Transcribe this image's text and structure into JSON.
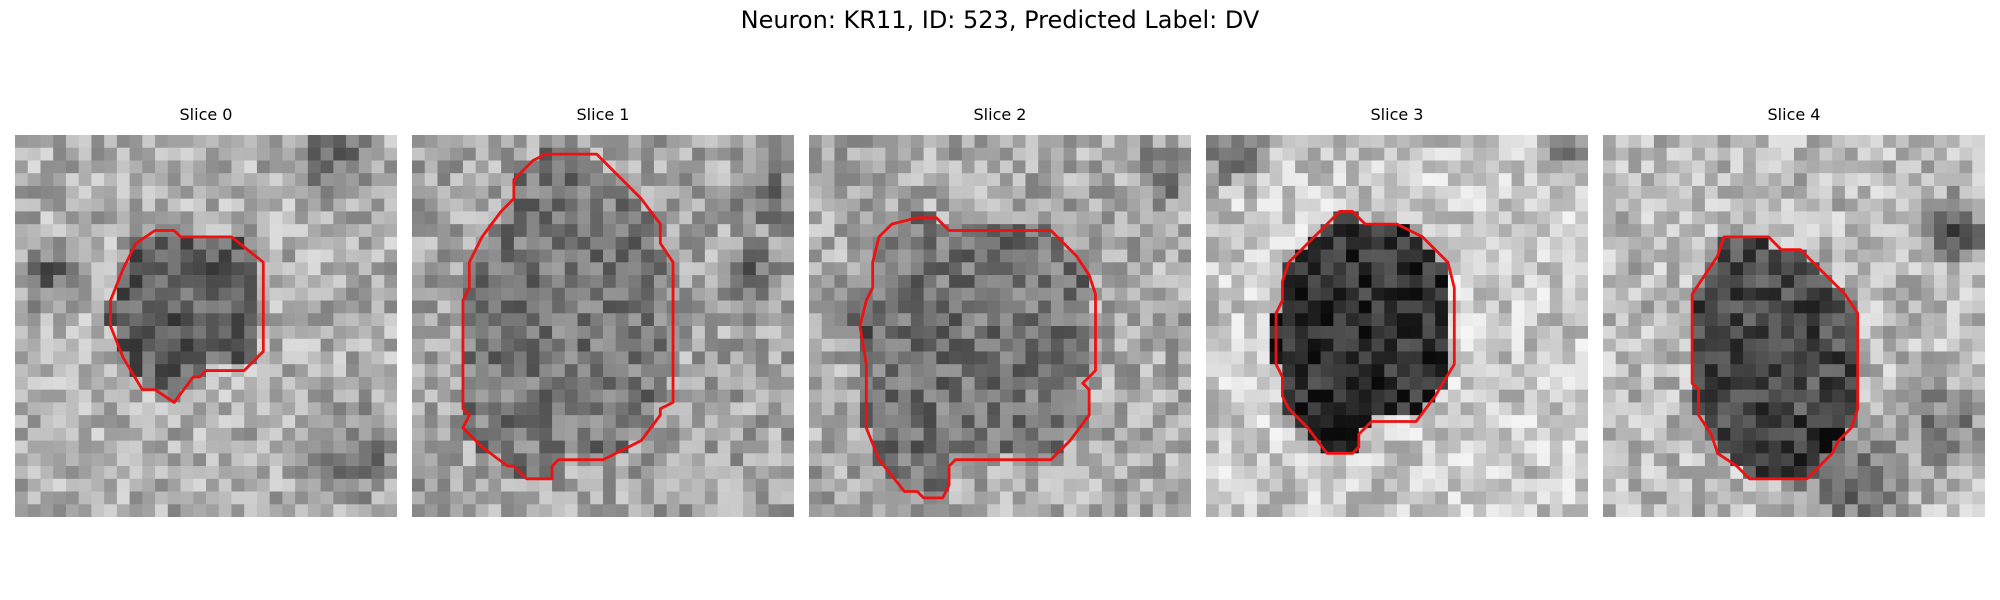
{
  "figure": {
    "title": "Neuron: KR11, ID: 523, Predicted Label: DV",
    "contour_color": "#ee1111",
    "colormap": "gray"
  },
  "panels": [
    {
      "title": "Slice 0",
      "seed": 11,
      "base_bg": 175,
      "base_in": 95,
      "dark_blobs": [
        [
          3,
          11,
          2.2,
          90
        ],
        [
          25,
          2,
          2.6,
          80
        ],
        [
          27,
          25,
          3,
          70
        ]
      ],
      "contour": [
        [
          11.5,
          7.5
        ],
        [
          12.5,
          7.5
        ],
        [
          13,
          8
        ],
        [
          17,
          8
        ],
        [
          19.5,
          10
        ],
        [
          19.5,
          17
        ],
        [
          18,
          18.5
        ],
        [
          15,
          18.5
        ],
        [
          14.5,
          19
        ],
        [
          14,
          19
        ],
        [
          12.5,
          21
        ],
        [
          11,
          20
        ],
        [
          10,
          20
        ],
        [
          8.5,
          17.5
        ],
        [
          7.5,
          15
        ],
        [
          7.5,
          13
        ],
        [
          8.5,
          10.5
        ],
        [
          9.5,
          8.5
        ],
        [
          11,
          7.5
        ]
      ]
    },
    {
      "title": "Slice 1",
      "seed": 23,
      "base_bg": 165,
      "base_in": 120,
      "dark_blobs": [
        [
          27,
          11,
          2,
          70
        ],
        [
          28,
          5,
          2,
          60
        ]
      ],
      "contour": [
        [
          10.5,
          1.5
        ],
        [
          14.5,
          1.5
        ],
        [
          16,
          3
        ],
        [
          18,
          5
        ],
        [
          19.5,
          7
        ],
        [
          19.5,
          8.5
        ],
        [
          20.5,
          10
        ],
        [
          20.5,
          21
        ],
        [
          19.5,
          21.5
        ],
        [
          19.5,
          22
        ],
        [
          18,
          24
        ],
        [
          17,
          24.5
        ],
        [
          15,
          25.5
        ],
        [
          11.5,
          25.5
        ],
        [
          11,
          26
        ],
        [
          11,
          27
        ],
        [
          9,
          27
        ],
        [
          8,
          26
        ],
        [
          7.5,
          26
        ],
        [
          5.5,
          24.5
        ],
        [
          4,
          23
        ],
        [
          4.5,
          22
        ],
        [
          4,
          21.5
        ],
        [
          4,
          13
        ],
        [
          4.5,
          12
        ],
        [
          4.5,
          10
        ],
        [
          5.5,
          8
        ],
        [
          7,
          6
        ],
        [
          8,
          5
        ],
        [
          8,
          3.5
        ],
        [
          9.5,
          2
        ]
      ]
    },
    {
      "title": "Slice 2",
      "seed": 37,
      "base_bg": 170,
      "base_in": 115,
      "dark_blobs": [
        [
          3,
          14,
          2,
          70
        ],
        [
          28,
          3,
          2.2,
          70
        ]
      ],
      "contour": [
        [
          8.5,
          6.5
        ],
        [
          10,
          6.5
        ],
        [
          11,
          7.5
        ],
        [
          19,
          7.5
        ],
        [
          21,
          9.5
        ],
        [
          22,
          11
        ],
        [
          22.5,
          12.5
        ],
        [
          22.5,
          18.5
        ],
        [
          21.5,
          19.5
        ],
        [
          22,
          20
        ],
        [
          22,
          22
        ],
        [
          20.5,
          24
        ],
        [
          19,
          25.5
        ],
        [
          11.5,
          25.5
        ],
        [
          11,
          26
        ],
        [
          11,
          27.5
        ],
        [
          10.5,
          28.5
        ],
        [
          9,
          28.5
        ],
        [
          8.5,
          28
        ],
        [
          7.5,
          28
        ],
        [
          5.5,
          25.5
        ],
        [
          4.5,
          23
        ],
        [
          4.5,
          18
        ],
        [
          4,
          15
        ],
        [
          4.5,
          13
        ],
        [
          5,
          12
        ],
        [
          5,
          10
        ],
        [
          5.5,
          8
        ],
        [
          6.5,
          7
        ]
      ]
    },
    {
      "title": "Slice 3",
      "seed": 49,
      "base_bg": 200,
      "base_in": 45,
      "dark_blobs": [
        [
          2,
          1.5,
          2.4,
          100
        ],
        [
          28,
          2,
          2,
          70
        ]
      ],
      "contour": [
        [
          10.5,
          6
        ],
        [
          11.5,
          6
        ],
        [
          12.5,
          7
        ],
        [
          15,
          7
        ],
        [
          16,
          7.5
        ],
        [
          17,
          8
        ],
        [
          17.5,
          8.5
        ],
        [
          19,
          10
        ],
        [
          19.5,
          12
        ],
        [
          19.5,
          18
        ],
        [
          18,
          20.5
        ],
        [
          16.5,
          22.5
        ],
        [
          13,
          22.5
        ],
        [
          12,
          23.5
        ],
        [
          12,
          24.5
        ],
        [
          11.5,
          25
        ],
        [
          9.5,
          25
        ],
        [
          8,
          23
        ],
        [
          6.5,
          21.5
        ],
        [
          6,
          20.5
        ],
        [
          6,
          19
        ],
        [
          5.5,
          18
        ],
        [
          5.5,
          14
        ],
        [
          6,
          13
        ],
        [
          6,
          11.5
        ],
        [
          6.5,
          10
        ],
        [
          7.5,
          9
        ],
        [
          9,
          7.5
        ]
      ]
    },
    {
      "title": "Slice 4",
      "seed": 61,
      "base_bg": 185,
      "base_in": 75,
      "dark_blobs": [
        [
          28,
          7.5,
          2.2,
          110
        ],
        [
          19,
          27,
          4,
          90
        ],
        [
          27,
          23,
          3,
          80
        ]
      ],
      "contour": [
        [
          9.5,
          8
        ],
        [
          13,
          8
        ],
        [
          14,
          9
        ],
        [
          15.5,
          9
        ],
        [
          17,
          10.5
        ],
        [
          19,
          12.5
        ],
        [
          20,
          14
        ],
        [
          20,
          21.5
        ],
        [
          19.5,
          23
        ],
        [
          18.5,
          24
        ],
        [
          18,
          25
        ],
        [
          17.5,
          25.5
        ],
        [
          16,
          27
        ],
        [
          11.5,
          27
        ],
        [
          10.5,
          26
        ],
        [
          9,
          25
        ],
        [
          8.5,
          23.5
        ],
        [
          7.5,
          22
        ],
        [
          7.5,
          20
        ],
        [
          7,
          19.5
        ],
        [
          7,
          12.5
        ],
        [
          8,
          11
        ],
        [
          9,
          9.5
        ]
      ]
    }
  ]
}
